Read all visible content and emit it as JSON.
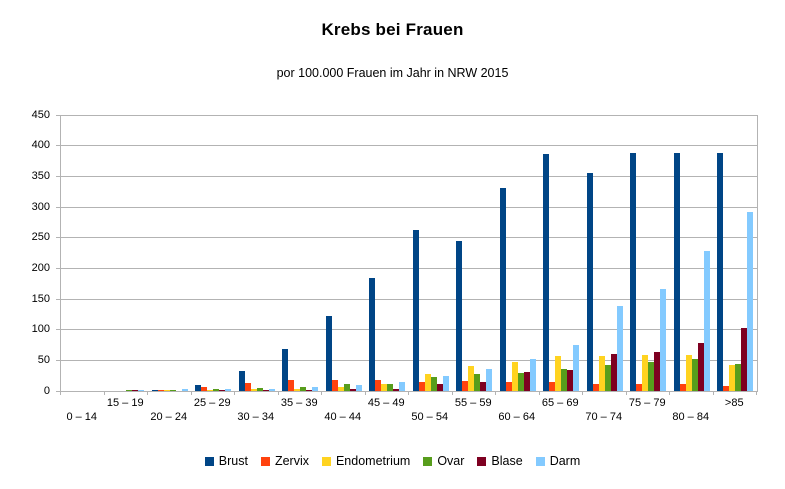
{
  "chart_data": {
    "type": "bar",
    "title": "Krebs bei Frauen",
    "subtitle": "por 100.000 Frauen im Jahr in NRW 2015",
    "categories": [
      "0 – 14",
      "15 – 19",
      "20 – 24",
      "25 – 29",
      "30 – 34",
      "35 – 39",
      "40 – 44",
      "45 – 49",
      "50 – 54",
      "55 – 59",
      "60 – 64",
      "65 – 69",
      "70 – 74",
      "75 – 79",
      "80 – 84",
      ">85"
    ],
    "series": [
      {
        "name": "Brust",
        "color": "#004586",
        "values": [
          0,
          0,
          1,
          9,
          33,
          69,
          123,
          185,
          262,
          245,
          331,
          386,
          355,
          388,
          388,
          388
        ]
      },
      {
        "name": "Zervix",
        "color": "#ff420e",
        "values": [
          0,
          0,
          2,
          6,
          13,
          18,
          18,
          18,
          14,
          16,
          14,
          14,
          12,
          12,
          11,
          8
        ]
      },
      {
        "name": "Endometrium",
        "color": "#ffd320",
        "values": [
          0,
          0,
          1,
          1,
          3,
          4,
          7,
          12,
          27,
          40,
          47,
          57,
          57,
          58,
          58,
          43
        ]
      },
      {
        "name": "Ovar",
        "color": "#579d1c",
        "values": [
          0,
          2,
          2,
          3,
          5,
          6,
          12,
          11,
          23,
          28,
          30,
          36,
          43,
          47,
          52,
          44
        ]
      },
      {
        "name": "Blase",
        "color": "#7e0021",
        "values": [
          0,
          1,
          0,
          1,
          1,
          2,
          3,
          4,
          11,
          14,
          31,
          34,
          60,
          64,
          79,
          103
        ]
      },
      {
        "name": "Darm",
        "color": "#83caff",
        "values": [
          0,
          2,
          3,
          3,
          4,
          6,
          10,
          14,
          25,
          36,
          52,
          75,
          139,
          166,
          228,
          292
        ]
      }
    ],
    "ylim": [
      0,
      450
    ],
    "y_ticks": [
      0,
      50,
      100,
      150,
      200,
      250,
      300,
      350,
      400,
      450
    ],
    "grid": "horizontal-only",
    "legend_position": "bottom"
  },
  "colors": {
    "gridline": "#b3b3b3",
    "text": "#000000",
    "background": "#ffffff"
  }
}
